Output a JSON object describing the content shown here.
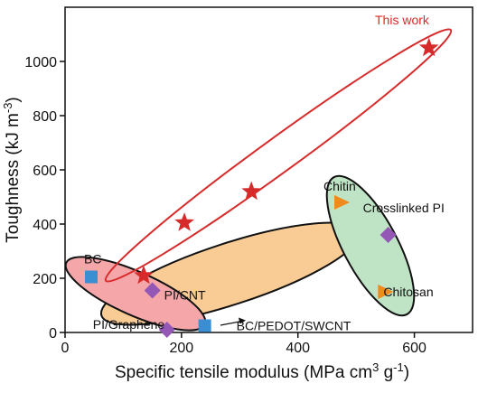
{
  "chart_data": {
    "type": "scatter",
    "xlabel": [
      "Specific tensile modulus (MPa cm",
      "3",
      " g",
      "-1",
      ")"
    ],
    "ylabel": [
      "Toughness (kJ m",
      "-3",
      ")"
    ],
    "xlim": [
      0,
      700
    ],
    "xticks": [
      0,
      200,
      400,
      600
    ],
    "ylim": [
      0,
      1200
    ],
    "yticks": [
      0,
      200,
      400,
      600,
      800,
      1000
    ],
    "series": [
      {
        "name": "This work",
        "marker": "star",
        "color": "#d72b2b",
        "x": [
          135,
          205,
          320,
          625
        ],
        "y": [
          210,
          405,
          520,
          1050
        ]
      },
      {
        "marker": "square",
        "color": "#3a8fd2",
        "x": [
          45,
          240
        ],
        "y": [
          205,
          25
        ],
        "labels": [
          "BC",
          "BC/PEDOT/SWCNT"
        ]
      },
      {
        "marker": "diamond",
        "color": "#9457b5",
        "x": [
          150,
          175,
          555
        ],
        "y": [
          155,
          10,
          360
        ],
        "labels": [
          "PI/CNT",
          "PI/Graphene",
          "Crosslinked PI"
        ]
      },
      {
        "marker": "triangle",
        "color": "#ef8a1c",
        "x": [
          475,
          550
        ],
        "y": [
          480,
          150
        ],
        "labels": [
          "Chitin",
          "Chitosan"
        ]
      }
    ]
  }
}
